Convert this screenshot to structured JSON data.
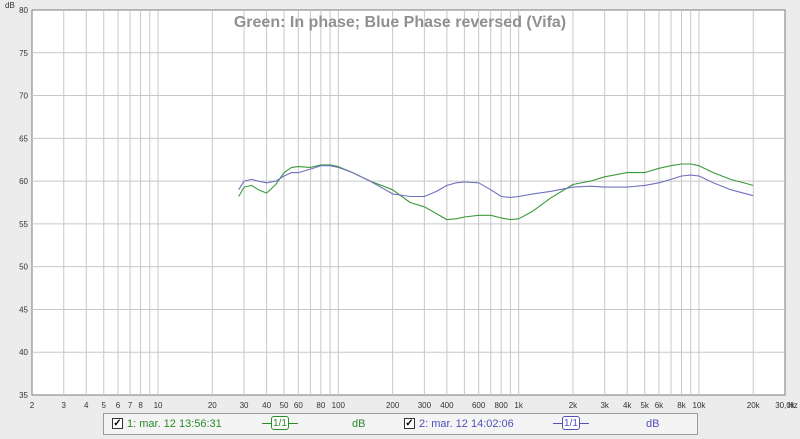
{
  "chart_data": {
    "type": "line",
    "title": "Green: In phase; Blue Phase reversed (Vifa)",
    "yunit": "dB",
    "xunit": "Hz",
    "xscale": "log",
    "xlim": [
      2,
      30000
    ],
    "ylim": [
      35,
      80
    ],
    "grid": true,
    "y_ticks": [
      35,
      40,
      45,
      50,
      55,
      60,
      65,
      70,
      75,
      80
    ],
    "x_ticks": [
      {
        "v": 2,
        "label": "2"
      },
      {
        "v": 3,
        "label": "3"
      },
      {
        "v": 4,
        "label": "4"
      },
      {
        "v": 5,
        "label": "5"
      },
      {
        "v": 6,
        "label": "6"
      },
      {
        "v": 7,
        "label": "7"
      },
      {
        "v": 8,
        "label": "8"
      },
      {
        "v": 10,
        "label": "10"
      },
      {
        "v": 20,
        "label": "20"
      },
      {
        "v": 30,
        "label": "30"
      },
      {
        "v": 40,
        "label": "40"
      },
      {
        "v": 50,
        "label": "50"
      },
      {
        "v": 60,
        "label": "60"
      },
      {
        "v": 80,
        "label": "80"
      },
      {
        "v": 100,
        "label": "100"
      },
      {
        "v": 200,
        "label": "200"
      },
      {
        "v": 300,
        "label": "300"
      },
      {
        "v": 400,
        "label": "400"
      },
      {
        "v": 600,
        "label": "600"
      },
      {
        "v": 800,
        "label": "800"
      },
      {
        "v": 1000,
        "label": "1k"
      },
      {
        "v": 2000,
        "label": "2k"
      },
      {
        "v": 3000,
        "label": "3k"
      },
      {
        "v": 4000,
        "label": "4k"
      },
      {
        "v": 5000,
        "label": "5k"
      },
      {
        "v": 6000,
        "label": "6k"
      },
      {
        "v": 8000,
        "label": "8k"
      },
      {
        "v": 10000,
        "label": "10k"
      },
      {
        "v": 20000,
        "label": "20k"
      },
      {
        "v": 30000,
        "label": "30,0k"
      }
    ],
    "series": [
      {
        "color": "#3a9a3a",
        "x": [
          28,
          30,
          33,
          36,
          40,
          45,
          50,
          55,
          60,
          70,
          80,
          90,
          100,
          120,
          150,
          200,
          250,
          300,
          350,
          400,
          450,
          500,
          600,
          700,
          800,
          900,
          1000,
          1200,
          1500,
          2000,
          2500,
          3000,
          4000,
          5000,
          6000,
          7000,
          8000,
          9000,
          10000,
          12000,
          15000,
          20000
        ],
        "y": [
          58.2,
          59.3,
          59.5,
          59.0,
          58.6,
          59.6,
          61.0,
          61.6,
          61.7,
          61.6,
          61.9,
          61.9,
          61.7,
          61.0,
          60.0,
          59.0,
          57.5,
          57.0,
          56.2,
          55.5,
          55.6,
          55.8,
          56.0,
          56.0,
          55.7,
          55.5,
          55.6,
          56.5,
          58.0,
          59.6,
          60.0,
          60.5,
          61.0,
          61.0,
          61.5,
          61.8,
          62.0,
          62.0,
          61.8,
          61.0,
          60.2,
          59.5
        ]
      },
      {
        "color": "#7070c0",
        "x": [
          28,
          30,
          33,
          36,
          40,
          45,
          50,
          55,
          60,
          70,
          80,
          90,
          100,
          120,
          150,
          200,
          250,
          300,
          350,
          400,
          450,
          500,
          600,
          700,
          800,
          900,
          1000,
          1200,
          1500,
          2000,
          2500,
          3000,
          4000,
          5000,
          6000,
          7000,
          8000,
          9000,
          10000,
          12000,
          15000,
          20000
        ],
        "y": [
          59.0,
          60.0,
          60.2,
          60.0,
          59.8,
          60.0,
          60.6,
          61.0,
          61.0,
          61.4,
          61.8,
          61.8,
          61.6,
          61.0,
          60.0,
          58.5,
          58.2,
          58.2,
          58.8,
          59.5,
          59.8,
          59.9,
          59.8,
          59.0,
          58.2,
          58.1,
          58.2,
          58.5,
          58.8,
          59.3,
          59.4,
          59.3,
          59.3,
          59.5,
          59.8,
          60.2,
          60.6,
          60.7,
          60.6,
          59.8,
          59.0,
          58.3
        ]
      }
    ]
  },
  "legend": {
    "items": [
      {
        "checked": "✓",
        "label": "1: mar. 12 13:56:31",
        "smoothing": "1/1",
        "unit": "dB",
        "color": "#2a8a2a"
      },
      {
        "checked": "✓",
        "label": "2: mar. 12 14:02:06",
        "smoothing": "1/1",
        "unit": "dB",
        "color": "#5050b8"
      }
    ]
  }
}
